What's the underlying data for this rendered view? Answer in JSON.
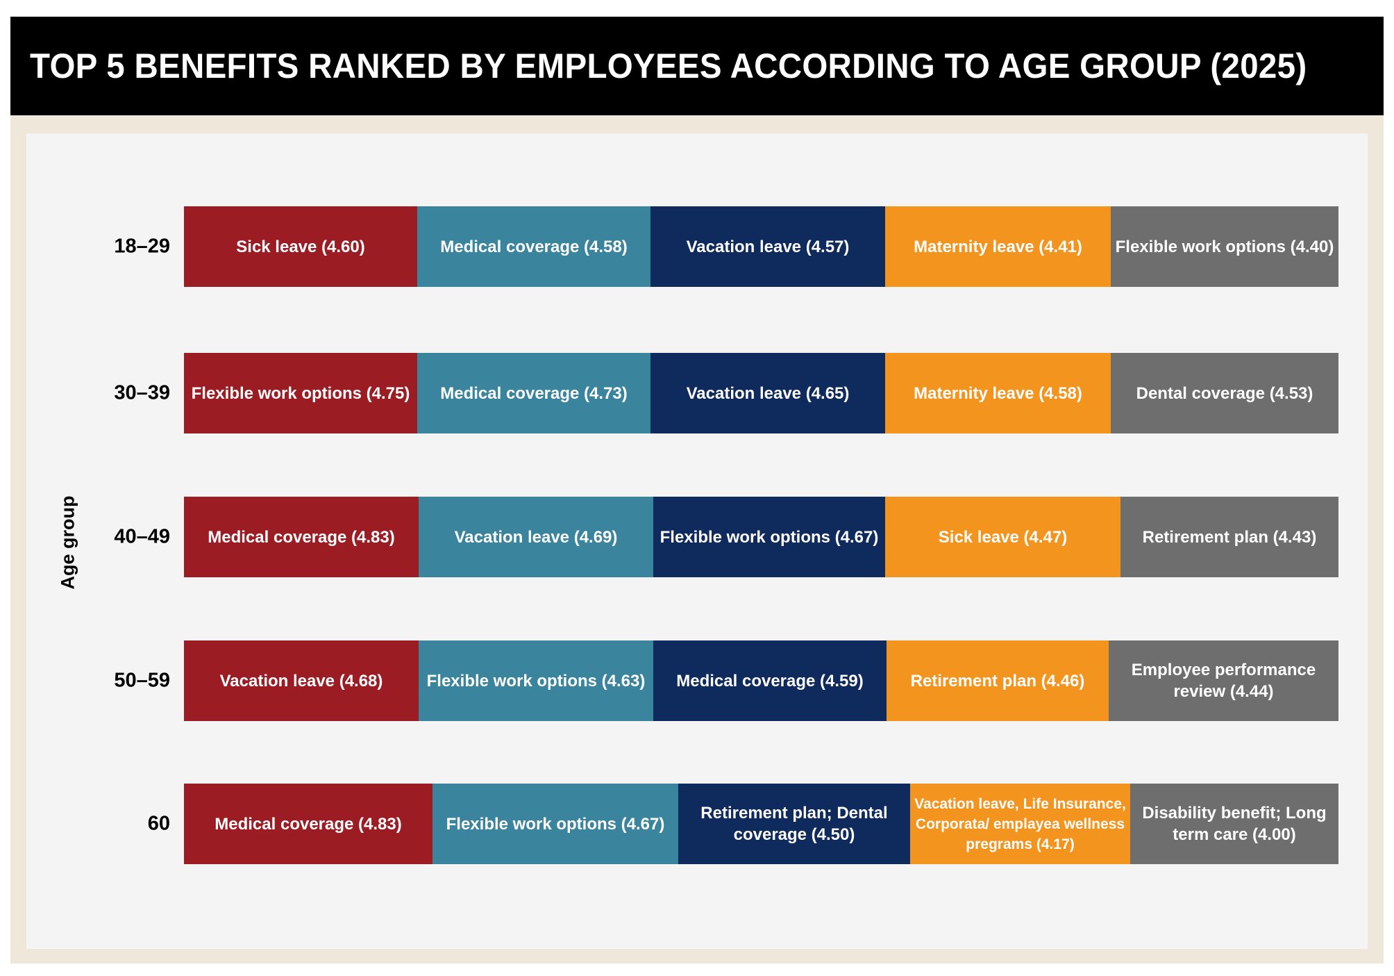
{
  "title": "TOP 5 BENEFITS RANKED BY EMPLOYEES ACCORDING TO AGE GROUP (2025)",
  "colors": {
    "rank1": "#9C1C24",
    "rank2": "#3A849E",
    "rank3": "#0F2A5C",
    "rank4": "#F3941F",
    "rank5": "#6E6E6F",
    "frame": "#EEE7DA",
    "panel": "#F4F4F4"
  },
  "chart_data": {
    "type": "table",
    "title": "TOP 5 BENEFITS RANKED BY EMPLOYEES ACCORDING TO AGE GROUP (2025)",
    "ylabel": "Age group",
    "categories": [
      "18–29",
      "30–39",
      "40–49",
      "50–59",
      "60"
    ],
    "ranks": [
      1,
      2,
      3,
      4,
      5
    ],
    "rows": [
      {
        "age": "18–29",
        "items": [
          {
            "rank": 1,
            "benefit": "Sick leave",
            "score": 4.6,
            "label": "Sick leave (4.60)"
          },
          {
            "rank": 2,
            "benefit": "Medical coverage",
            "score": 4.58,
            "label": "Medical coverage (4.58)"
          },
          {
            "rank": 3,
            "benefit": "Vacation leave",
            "score": 4.57,
            "label": "Vacation leave (4.57)"
          },
          {
            "rank": 4,
            "benefit": "Maternity leave",
            "score": 4.41,
            "label": "Maternity leave (4.41)"
          },
          {
            "rank": 5,
            "benefit": "Flexible work options",
            "score": 4.4,
            "label": "Flexible work options (4.40)"
          }
        ]
      },
      {
        "age": "30–39",
        "items": [
          {
            "rank": 1,
            "benefit": "Flexible work options",
            "score": 4.75,
            "label": "Flexible work options (4.75)"
          },
          {
            "rank": 2,
            "benefit": "Medical coverage",
            "score": 4.73,
            "label": "Medical coverage (4.73)"
          },
          {
            "rank": 3,
            "benefit": "Vacation leave",
            "score": 4.65,
            "label": "Vacation leave (4.65)"
          },
          {
            "rank": 4,
            "benefit": "Maternity leave",
            "score": 4.58,
            "label": "Maternity leave (4.58)"
          },
          {
            "rank": 5,
            "benefit": "Dental coverage",
            "score": 4.53,
            "label": "Dental coverage (4.53)"
          }
        ]
      },
      {
        "age": "40–49",
        "items": [
          {
            "rank": 1,
            "benefit": "Medical coverage",
            "score": 4.83,
            "label": "Medical coverage (4.83)"
          },
          {
            "rank": 2,
            "benefit": "Vacation leave",
            "score": 4.69,
            "label": "Vacation leave (4.69)"
          },
          {
            "rank": 3,
            "benefit": "Flexible work options",
            "score": 4.67,
            "label": "Flexible work options (4.67)"
          },
          {
            "rank": 4,
            "benefit": "Sick leave",
            "score": 4.47,
            "label": "Sick leave (4.47)"
          },
          {
            "rank": 5,
            "benefit": "Retirement plan",
            "score": 4.43,
            "label": "Retirement plan (4.43)"
          }
        ]
      },
      {
        "age": "50–59",
        "items": [
          {
            "rank": 1,
            "benefit": "Vacation leave",
            "score": 4.68,
            "label": "Vacation leave (4.68)"
          },
          {
            "rank": 2,
            "benefit": "Flexible work options",
            "score": 4.63,
            "label": "Flexible work options (4.63)"
          },
          {
            "rank": 3,
            "benefit": "Medical coverage",
            "score": 4.59,
            "label": "Medical coverage (4.59)"
          },
          {
            "rank": 4,
            "benefit": "Retirement plan",
            "score": 4.46,
            "label": "Retirement plan (4.46)"
          },
          {
            "rank": 5,
            "benefit": "Employee performance review",
            "score": 4.44,
            "label": "Employee performance review (4.44)"
          }
        ]
      },
      {
        "age": "60",
        "items": [
          {
            "rank": 1,
            "benefit": "Medical coverage",
            "score": 4.83,
            "label": "Medical coverage (4.83)"
          },
          {
            "rank": 2,
            "benefit": "Flexible work options",
            "score": 4.67,
            "label": "Flexible work options (4.67)"
          },
          {
            "rank": 3,
            "benefit": "Retirement plan; Dental coverage",
            "score": 4.5,
            "label": "Retirement plan; Dental coverage (4.50)"
          },
          {
            "rank": 4,
            "benefit": "Vacation leave, Life Insurance, Corporata/ emplayea wellness pregrams",
            "score": 4.17,
            "label": "Vacation leave, Life Insurance, Corporata/ emplayea wellness pregrams (4.17)"
          },
          {
            "rank": 5,
            "benefit": "Disability benefit; Long term care",
            "score": 4.0,
            "label": "Disability benefit; Long term care (4.00)"
          }
        ]
      }
    ]
  }
}
